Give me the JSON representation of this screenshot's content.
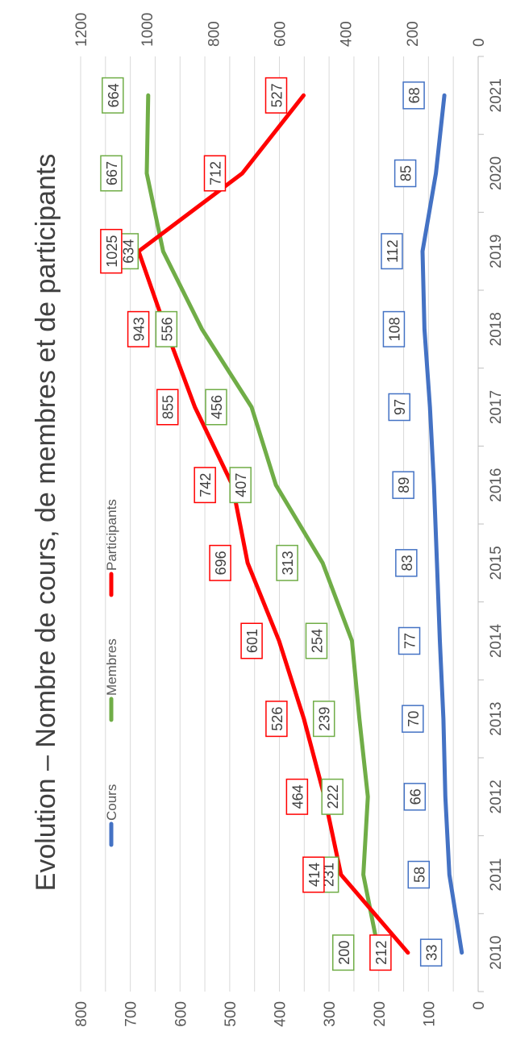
{
  "chart_data": {
    "type": "line",
    "title": "Evolution – Nombre de cours, de membres et de participants",
    "categories": [
      "2010",
      "2011",
      "2012",
      "2013",
      "2014",
      "2015",
      "2016",
      "2017",
      "2018",
      "2019",
      "2020",
      "2021"
    ],
    "left_axis": {
      "ylim": [
        0,
        800
      ],
      "ticks": [
        "0",
        "100",
        "200",
        "300",
        "400",
        "500",
        "600",
        "700",
        "800"
      ]
    },
    "right_axis": {
      "ylim": [
        0,
        1200
      ],
      "ticks": [
        "0",
        "200",
        "400",
        "600",
        "800",
        "1000",
        "1200"
      ]
    },
    "legend_position": "top",
    "grid": true,
    "series": [
      {
        "name": "Cours",
        "axis": "left",
        "color": "#4472C4",
        "values": [
          33,
          58,
          66,
          70,
          77,
          83,
          89,
          97,
          108,
          112,
          85,
          68
        ],
        "labels": [
          "33",
          "58",
          "66",
          "70",
          "77",
          "83",
          "89",
          "97",
          "108",
          "112",
          "85",
          "68"
        ]
      },
      {
        "name": "Membres",
        "axis": "left",
        "color": "#70AD47",
        "values": [
          200,
          231,
          222,
          239,
          254,
          313,
          407,
          456,
          556,
          634,
          667,
          664
        ],
        "labels": [
          "200",
          "231",
          "222",
          "239",
          "254",
          "313",
          "407",
          "456",
          "556",
          "634",
          "667",
          "664"
        ]
      },
      {
        "name": "Participants",
        "axis": "right",
        "color": "#FF0000",
        "values": [
          212,
          414,
          464,
          526,
          601,
          696,
          742,
          855,
          943,
          1025,
          712,
          527
        ],
        "labels": [
          "212",
          "414",
          "464",
          "526",
          "601",
          "696",
          "742",
          "855",
          "943",
          "1025",
          "712",
          "527"
        ]
      }
    ]
  }
}
